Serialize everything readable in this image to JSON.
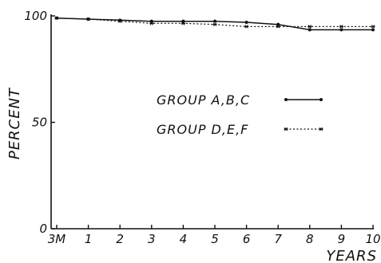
{
  "chart_data": {
    "type": "line",
    "title": "",
    "xlabel": "YEARS",
    "ylabel": "PERCENT",
    "categories": [
      "3M",
      "1",
      "2",
      "3",
      "4",
      "5",
      "6",
      "7",
      "8",
      "9",
      "10"
    ],
    "yticks": [
      "0",
      "50",
      "100"
    ],
    "ylim": [
      0,
      100
    ],
    "grid": false,
    "legend_position": "center",
    "series": [
      {
        "name": "GROUP A,B,C",
        "style": "solid-dot",
        "values": [
          99,
          98.5,
          98,
          97.5,
          97.5,
          97.5,
          97,
          96,
          93.5,
          93.5,
          93.5
        ]
      },
      {
        "name": "GROUP D,E,F",
        "style": "dotted-star",
        "values": [
          99,
          98.5,
          97.5,
          96.5,
          96.5,
          96,
          95,
          95,
          95,
          95,
          95
        ]
      }
    ]
  }
}
